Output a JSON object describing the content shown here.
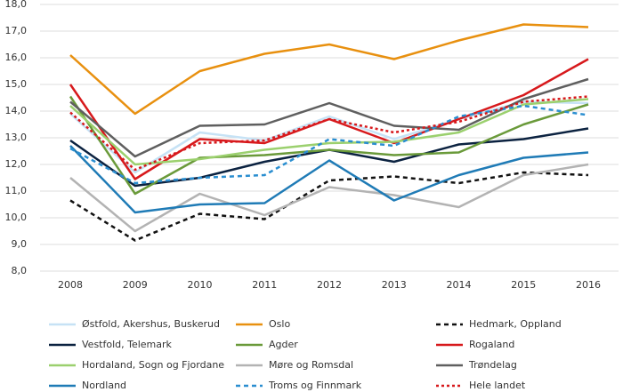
{
  "chart_data": {
    "type": "line",
    "categories": [
      "2008",
      "2009",
      "2010",
      "2011",
      "2012",
      "2013",
      "2014",
      "2015",
      "2016"
    ],
    "ylim": [
      8,
      18
    ],
    "yticks": [
      {
        "value": 8,
        "label": "8,0"
      },
      {
        "value": 9,
        "label": "9,0"
      },
      {
        "value": 10,
        "label": "10,0"
      },
      {
        "value": 11,
        "label": "11,0"
      },
      {
        "value": 12,
        "label": "12,0"
      },
      {
        "value": 13,
        "label": "13,0"
      },
      {
        "value": 14,
        "label": "14,0"
      },
      {
        "value": 15,
        "label": "15,0"
      },
      {
        "value": 16,
        "label": "16,0"
      },
      {
        "value": 17,
        "label": "17,0"
      },
      {
        "value": 18,
        "label": "18,0"
      }
    ],
    "grid": true,
    "legend": "bottom",
    "series": [
      {
        "name": "Østfold, Akershus, Buskerud",
        "color": "#c6e2f5",
        "dash": "solid",
        "values": [
          13.9,
          11.7,
          13.2,
          12.9,
          13.8,
          12.95,
          13.7,
          14.35,
          14.3
        ]
      },
      {
        "name": "Oslo",
        "color": "#e8900f",
        "dash": "solid",
        "values": [
          16.1,
          13.9,
          15.5,
          16.15,
          16.5,
          15.95,
          16.65,
          17.25,
          17.15
        ]
      },
      {
        "name": "Hedmark, Oppland",
        "color": "#111111",
        "dash": "dashed",
        "values": [
          10.65,
          9.15,
          10.15,
          9.95,
          11.4,
          11.55,
          11.3,
          11.7,
          11.6
        ]
      },
      {
        "name": "Vestfold, Telemark",
        "color": "#0b2240",
        "dash": "solid",
        "values": [
          12.9,
          11.2,
          11.5,
          12.1,
          12.55,
          12.1,
          12.75,
          12.95,
          13.35
        ]
      },
      {
        "name": "Agder",
        "color": "#6a9a3a",
        "dash": "solid",
        "values": [
          14.55,
          10.9,
          12.25,
          12.35,
          12.55,
          12.35,
          12.45,
          13.5,
          14.25
        ]
      },
      {
        "name": "Rogaland",
        "color": "#d7191c",
        "dash": "solid",
        "values": [
          15.0,
          11.45,
          12.95,
          12.8,
          13.7,
          12.8,
          13.7,
          14.6,
          15.95
        ]
      },
      {
        "name": "Hordaland, Sogn og Fjordane",
        "color": "#9bd06e",
        "dash": "solid",
        "values": [
          14.2,
          12.0,
          12.2,
          12.55,
          12.8,
          12.85,
          13.2,
          14.25,
          14.45
        ]
      },
      {
        "name": "Møre og Romsdal",
        "color": "#b3b3b3",
        "dash": "solid",
        "values": [
          11.5,
          9.5,
          10.9,
          10.1,
          11.15,
          10.85,
          10.4,
          11.6,
          12.0
        ]
      },
      {
        "name": "Trøndelag",
        "color": "#5f5f5f",
        "dash": "solid",
        "values": [
          14.35,
          12.3,
          13.45,
          13.5,
          14.3,
          13.45,
          13.3,
          14.45,
          15.2
        ]
      },
      {
        "name": "Nordland",
        "color": "#1f7bb6",
        "dash": "solid",
        "values": [
          12.7,
          10.2,
          10.5,
          10.55,
          12.15,
          10.65,
          11.6,
          12.25,
          12.45
        ]
      },
      {
        "name": "Troms og Finnmark",
        "color": "#2a8ed0",
        "dash": "dashed",
        "values": [
          12.6,
          11.3,
          11.5,
          11.6,
          12.95,
          12.7,
          13.8,
          14.2,
          13.85
        ]
      },
      {
        "name": "Hele landet",
        "color": "#d7191c",
        "dash": "dotted",
        "values": [
          13.95,
          11.8,
          12.8,
          12.9,
          13.7,
          13.2,
          13.6,
          14.35,
          14.55
        ]
      }
    ]
  }
}
